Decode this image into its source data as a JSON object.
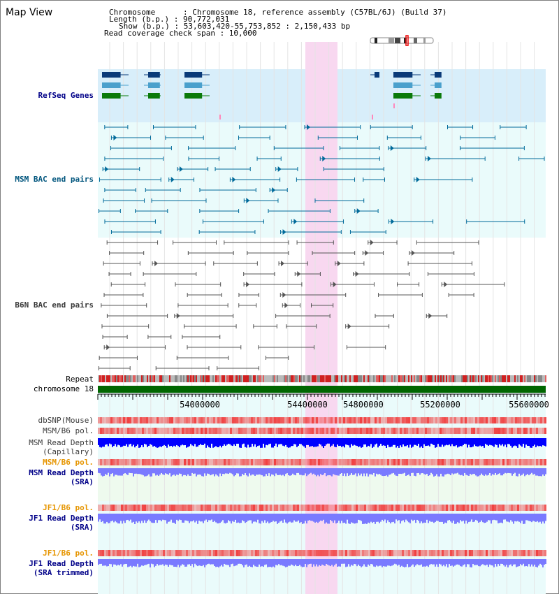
{
  "title": "Map View",
  "info": {
    "chromosome": "Chromosome      : Chromosome 18, reference assembly (C57BL/6J) (Build 37)",
    "length": "Length (b.p.) : 90,772,031",
    "show": "Show (b.p.) : 53,603,420-55,753,852 : 2,150,433 bp",
    "read_coverage": "Read coverage check span : 10,000"
  },
  "tracks": {
    "refseq": "RefSeq Genes",
    "msm_bac": "MSM BAC end pairs",
    "b6n_bac": "B6N BAC end pairs",
    "repeat": "Repeat",
    "chromosome": "chromosome 18",
    "dbsnp": "dbSNP(Mouse)",
    "msm_b6_pol_1": "MSM/B6 pol.",
    "msm_depth_cap_1": "MSM Read Depth",
    "msm_depth_cap_2": "(Capillary)",
    "msm_b6_pol_2": "MSM/B6 pol.",
    "msm_depth_sra_1": "MSM Read Depth",
    "msm_depth_sra_2": "(SRA)",
    "jf1_b6_pol_1": "JF1/B6 pol.",
    "jf1_depth_sra_1": "JF1 Read Depth",
    "jf1_depth_sra_2": "(SRA)",
    "jf1_b6_pol_2": "JF1/B6 pol.",
    "jf1_depth_trim_1": "JF1 Read Depth",
    "jf1_depth_trim_2": "(SRA trimmed)"
  },
  "axis_ticks": [
    "54000000",
    "54400000",
    "54800000",
    "55200000",
    "55600000"
  ],
  "colors": {
    "refseq_bg": "#d8eefa",
    "bac_bg": "#eafbfb",
    "highlight": "#f8d8f0",
    "chromosome_bar": "#006600",
    "depth_dark": "#0000ff",
    "depth_light": "#7a7aff",
    "pol_red": "#f04040",
    "msm_bac_line": "#006a9a",
    "b6n_bac_line": "#555555",
    "gene_navy": "#0a3a78",
    "gene_blue": "#4aa0cc",
    "gene_green": "#0a7a0a"
  }
}
